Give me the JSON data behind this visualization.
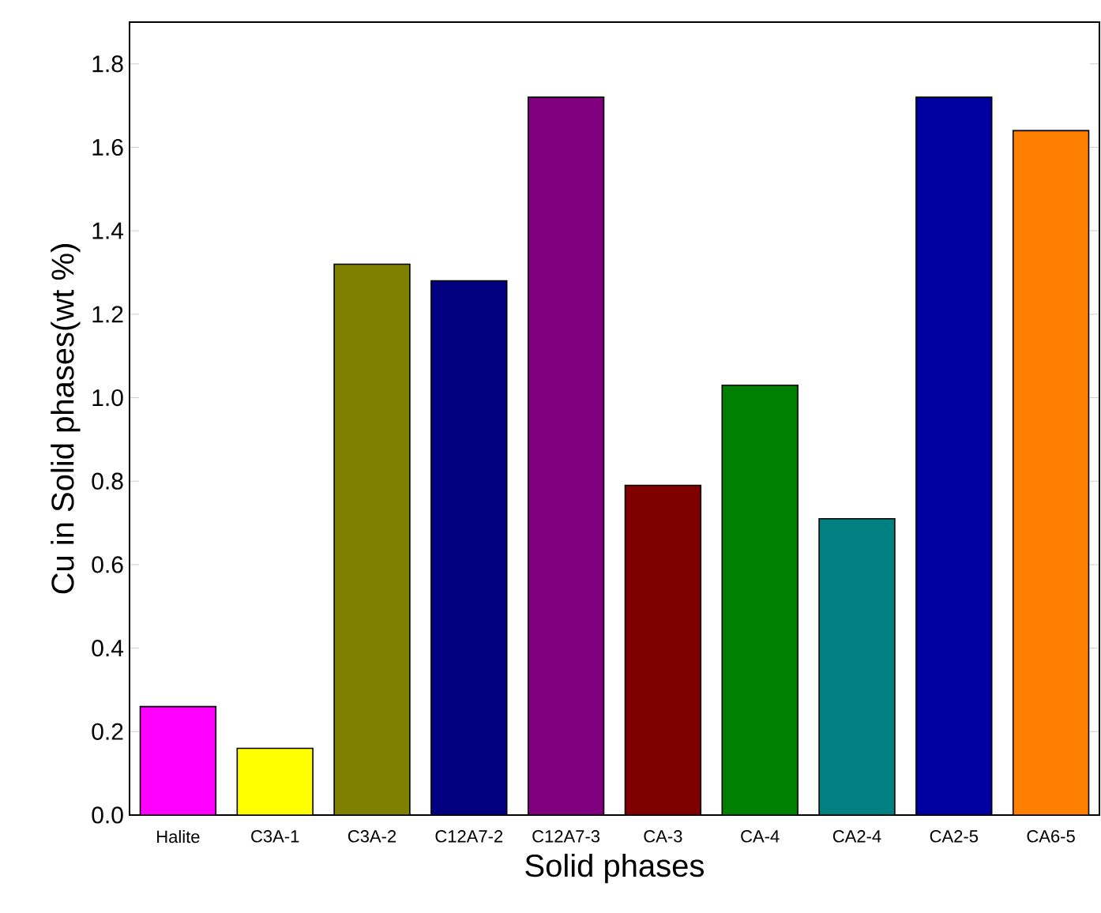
{
  "chart_data": {
    "type": "bar",
    "xlabel": "Solid phases",
    "ylabel": "Cu in Solid phases(wt %)",
    "categories": [
      "Halite",
      "C3A-1",
      "C3A-2",
      "C12A7-2",
      "C12A7-3",
      "CA-3",
      "CA-4",
      "CA2-4",
      "CA2-5",
      "CA6-5"
    ],
    "values": [
      0.26,
      0.16,
      1.32,
      1.28,
      1.72,
      0.79,
      1.03,
      0.71,
      1.72,
      1.64
    ],
    "colors": [
      "#ff00ff",
      "#ffff00",
      "#808000",
      "#000080",
      "#800080",
      "#800000",
      "#008000",
      "#008080",
      "#0000a0",
      "#ff8000"
    ],
    "ylim": [
      0,
      1.9
    ],
    "yticks": [
      {
        "value": 0,
        "label": "0.0"
      },
      0.2,
      0.4,
      0.6,
      0.8,
      {
        "value": 1,
        "label": "1.0"
      },
      1.2,
      1.4,
      1.6,
      1.8
    ],
    "grid": false
  }
}
